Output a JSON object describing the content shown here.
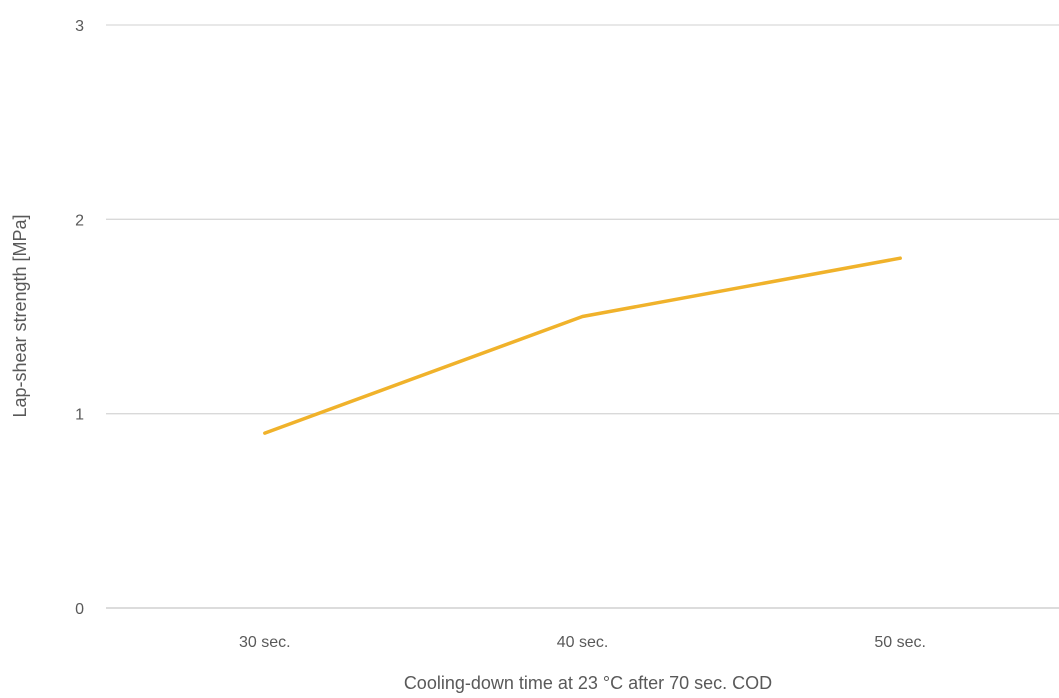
{
  "chart_data": {
    "type": "line",
    "title": "",
    "xlabel": "Cooling-down time at 23 °C after 70 sec. COD",
    "ylabel": "Lap-shear strength [MPa]",
    "categories": [
      "30 sec.",
      "40 sec.",
      "50 sec."
    ],
    "series": [
      {
        "values": [
          0.9,
          1.5,
          1.8
        ],
        "color": "#f0b22b"
      }
    ],
    "ylim": [
      0,
      3
    ],
    "yticks": [
      0,
      1,
      2,
      3
    ],
    "ytick_labels": [
      "0",
      "1",
      "2",
      "3"
    ],
    "grid": true,
    "legend": "none"
  }
}
